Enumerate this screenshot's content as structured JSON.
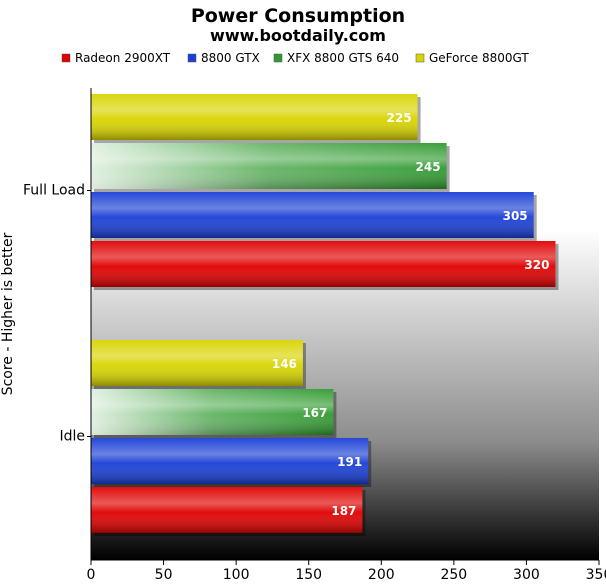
{
  "chart_data": {
    "type": "bar",
    "orientation": "horizontal",
    "title": "Power Consumption",
    "subtitle": "www.bootdaily.com",
    "ylabel": "Score - Higher is better",
    "xlabel": "",
    "categories": [
      "Full Load",
      "Idle"
    ],
    "series": [
      {
        "name": "Radeon 2900XT",
        "color": "#e00000",
        "values": [
          320,
          187
        ]
      },
      {
        "name": "8800 GTX",
        "color": "#1a3fd6",
        "values": [
          305,
          191
        ]
      },
      {
        "name": "XFX 8800 GTS 640",
        "color": "#2f9a2f",
        "values": [
          245,
          167
        ]
      },
      {
        "name": "GeForce 8800GT",
        "color": "#d8d400",
        "values": [
          225,
          146
        ]
      }
    ],
    "xlim": [
      0,
      350
    ],
    "xticks": [
      0,
      50,
      100,
      150,
      200,
      250,
      300,
      350
    ],
    "legend_position": "top",
    "grid": false,
    "plot_background": "white-to-black vertical gradient"
  }
}
